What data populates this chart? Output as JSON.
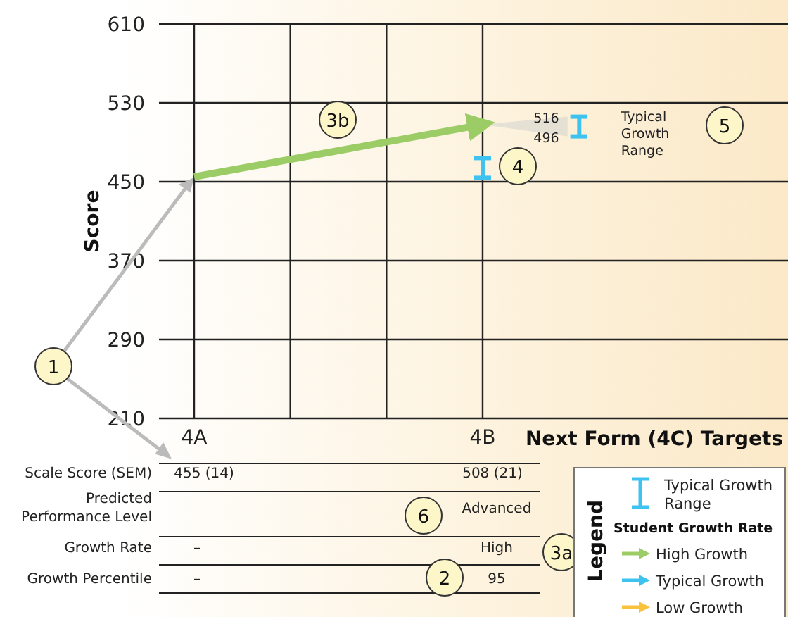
{
  "chart_data": {
    "type": "line",
    "ylabel": "Score",
    "xlabel": "Next Form (4C) Targets",
    "categories": [
      "4A",
      null,
      null,
      "4B",
      null
    ],
    "ylim": [
      210,
      610
    ],
    "yticks": [
      210,
      290,
      370,
      450,
      530,
      610
    ],
    "grid": true,
    "marker": "none",
    "line_style": "solid",
    "legend": "bottom right",
    "legend_title": "Legend",
    "series": [
      {
        "name": "Typical Growth Range",
        "type": "bar",
        "color": "#3ec3f0",
        "base": [
          null,
          null,
          null,
          454,
          496
        ],
        "values": [
          null,
          null,
          null,
          20,
          20
        ]
      },
      {
        "name": "High Growth",
        "color": "#9ccc65",
        "values": [
          455,
          null,
          null,
          508,
          null
        ],
        "value_labels": [
          "455 (14)",
          null,
          null,
          "508 (21)",
          null
        ]
      },
      {
        "name": "Typical Growth",
        "color": "#3ec3f0",
        "values": [
          null,
          null,
          null,
          null,
          null
        ]
      },
      {
        "name": "Low Growth",
        "color": "#f9c23c",
        "values": [
          null,
          null,
          null,
          null,
          null
        ]
      }
    ],
    "annotations": [
      "Scale Score (SEM)",
      "Predicted Performance Level",
      "Advanced",
      "Growth Rate",
      "–",
      "High",
      "Growth Percentile",
      "–",
      "95",
      "Typical Growth Range",
      "516",
      "496",
      "1",
      "2",
      "3a",
      "3b",
      "4",
      "5",
      "6",
      "Student Growth Rate"
    ]
  }
}
